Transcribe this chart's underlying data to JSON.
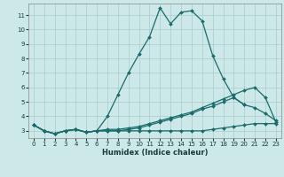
{
  "xlabel": "Humidex (Indice chaleur)",
  "background_color": "#cce8e8",
  "grid_color": "#aacccc",
  "line_color": "#1a6b6b",
  "xlim": [
    -0.5,
    23.5
  ],
  "ylim": [
    2.5,
    11.8
  ],
  "yticks": [
    3,
    4,
    5,
    6,
    7,
    8,
    9,
    10,
    11
  ],
  "xticks": [
    0,
    1,
    2,
    3,
    4,
    5,
    6,
    7,
    8,
    9,
    10,
    11,
    12,
    13,
    14,
    15,
    16,
    17,
    18,
    19,
    20,
    21,
    22,
    23
  ],
  "series1_x": [
    0,
    1,
    2,
    3,
    4,
    5,
    6,
    7,
    8,
    9,
    10,
    11,
    12,
    13,
    14,
    15,
    16,
    17,
    18,
    19,
    20
  ],
  "series1_y": [
    3.4,
    3.0,
    2.8,
    3.0,
    3.1,
    2.9,
    3.0,
    4.0,
    5.5,
    7.0,
    8.3,
    9.5,
    11.5,
    10.4,
    11.2,
    11.3,
    10.6,
    8.2,
    6.6,
    5.3,
    4.8
  ],
  "series2_x": [
    0,
    1,
    2,
    3,
    4,
    5,
    6,
    7,
    8,
    9,
    10,
    11,
    12,
    13,
    14,
    15,
    16,
    17,
    18,
    19,
    20,
    21,
    22,
    23
  ],
  "series2_y": [
    3.4,
    3.0,
    2.8,
    3.0,
    3.1,
    2.9,
    3.0,
    3.1,
    3.1,
    3.2,
    3.3,
    3.5,
    3.7,
    3.9,
    4.1,
    4.3,
    4.6,
    4.9,
    5.2,
    5.5,
    5.8,
    6.0,
    5.3,
    3.6
  ],
  "series3_x": [
    0,
    1,
    2,
    3,
    4,
    5,
    6,
    7,
    8,
    9,
    10,
    11,
    12,
    13,
    14,
    15,
    16,
    17,
    18,
    19,
    20,
    21,
    22,
    23
  ],
  "series3_y": [
    3.4,
    3.0,
    2.8,
    3.0,
    3.1,
    2.9,
    3.0,
    3.0,
    3.0,
    3.1,
    3.2,
    3.4,
    3.6,
    3.8,
    4.0,
    4.2,
    4.5,
    4.7,
    5.0,
    5.3,
    4.8,
    4.6,
    4.2,
    3.7
  ],
  "series4_x": [
    0,
    1,
    2,
    3,
    4,
    5,
    6,
    7,
    8,
    9,
    10,
    11,
    12,
    13,
    14,
    15,
    16,
    17,
    18,
    19,
    20,
    21,
    22,
    23
  ],
  "series4_y": [
    3.4,
    3.0,
    2.8,
    3.0,
    3.1,
    2.9,
    3.0,
    3.0,
    3.0,
    3.0,
    3.0,
    3.0,
    3.0,
    3.0,
    3.0,
    3.0,
    3.0,
    3.1,
    3.2,
    3.3,
    3.4,
    3.5,
    3.5,
    3.5
  ]
}
